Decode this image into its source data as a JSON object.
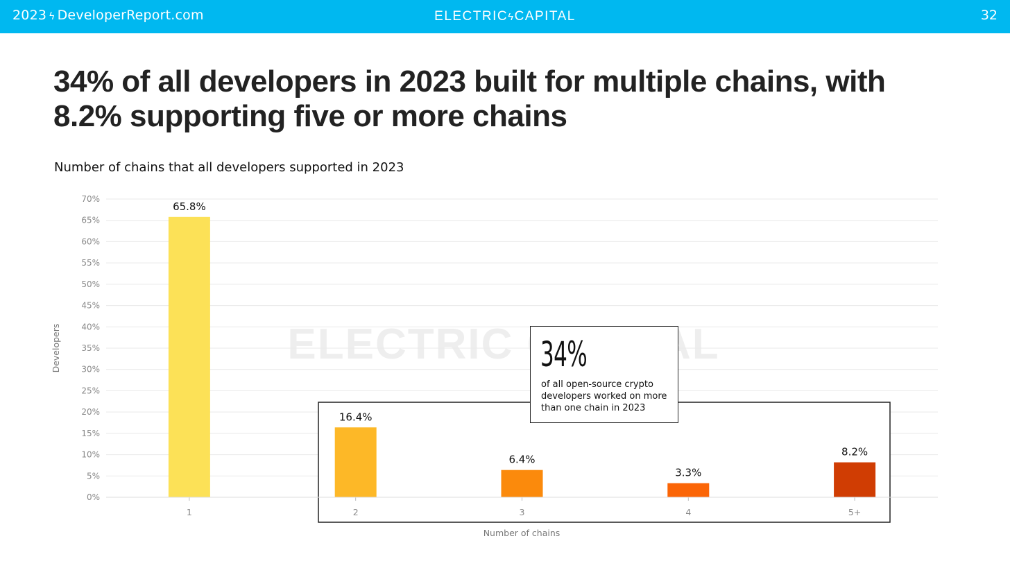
{
  "header": {
    "site_year": "2023",
    "site_name": "DeveloperReport.com",
    "bolt_icon": "lightning-bolt-icon",
    "brand_left": "ELECTRIC",
    "brand_right": "CAPITAL",
    "page_number": "32",
    "bar_color": "#00b8f0"
  },
  "headline": "34% of all developers in 2023 built for multiple chains, with 8.2% supporting five or more chains",
  "watermark": "ELECTRIC CAPITAL",
  "callout": {
    "value": "34%",
    "text": "of all open-source crypto developers worked on more than one chain in 2023"
  },
  "chart_data": {
    "type": "bar",
    "title": "Number of chains that all developers supported in 2023",
    "xlabel": "Number of chains",
    "ylabel": "Developers",
    "categories": [
      "1",
      "2",
      "3",
      "4",
      "5+"
    ],
    "values": [
      65.8,
      16.4,
      6.4,
      3.3,
      8.2
    ],
    "value_labels": [
      "65.8%",
      "16.4%",
      "6.4%",
      "3.3%",
      "8.2%"
    ],
    "colors": [
      "#fce157",
      "#fdb827",
      "#fb8a0c",
      "#fb6506",
      "#d03d03"
    ],
    "ylim": [
      0,
      70
    ],
    "yticks": [
      "0%",
      "5%",
      "10%",
      "15%",
      "20%",
      "25%",
      "30%",
      "35%",
      "40%",
      "45%",
      "50%",
      "55%",
      "60%",
      "65%",
      "70%"
    ],
    "grid": true,
    "legend": "none"
  }
}
